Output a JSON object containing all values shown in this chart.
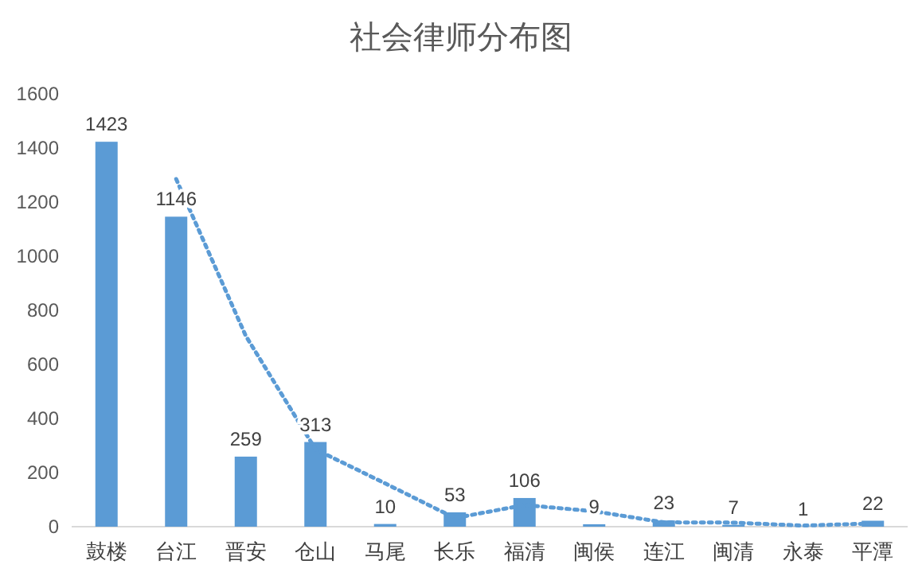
{
  "chart_data": {
    "type": "bar",
    "title": "社会律师分布图",
    "categories": [
      "鼓楼",
      "台江",
      "晋安",
      "仓山",
      "马尾",
      "长乐",
      "福清",
      "闽侯",
      "连江",
      "闽清",
      "永泰",
      "平潭"
    ],
    "series": [
      {
        "color": "#5b9bd5",
        "values": [
          1423,
          1146,
          259,
          313,
          10,
          53,
          106,
          9,
          23,
          7,
          1,
          22
        ],
        "value_labels": [
          "1423",
          "1146",
          "259",
          "313",
          "10",
          "53",
          "106",
          "9",
          "23",
          "7",
          "1",
          "22"
        ]
      },
      {
        "type": "line",
        "color": "#5b9bd5",
        "line_style": "dotted",
        "x": [
          "台江",
          "晋安",
          "仓山",
          "马尾",
          "长乐",
          "福清",
          "闽侯",
          "连江",
          "闽清",
          "永泰",
          "平潭"
        ],
        "values": [
          1285,
          705,
          286,
          160,
          32,
          80,
          57,
          16,
          15,
          4,
          12
        ]
      }
    ],
    "ylim": [
      0,
      1600
    ],
    "yticks": [
      0,
      200,
      400,
      600,
      800,
      1000,
      1200,
      1400,
      1600
    ],
    "grid": false
  }
}
